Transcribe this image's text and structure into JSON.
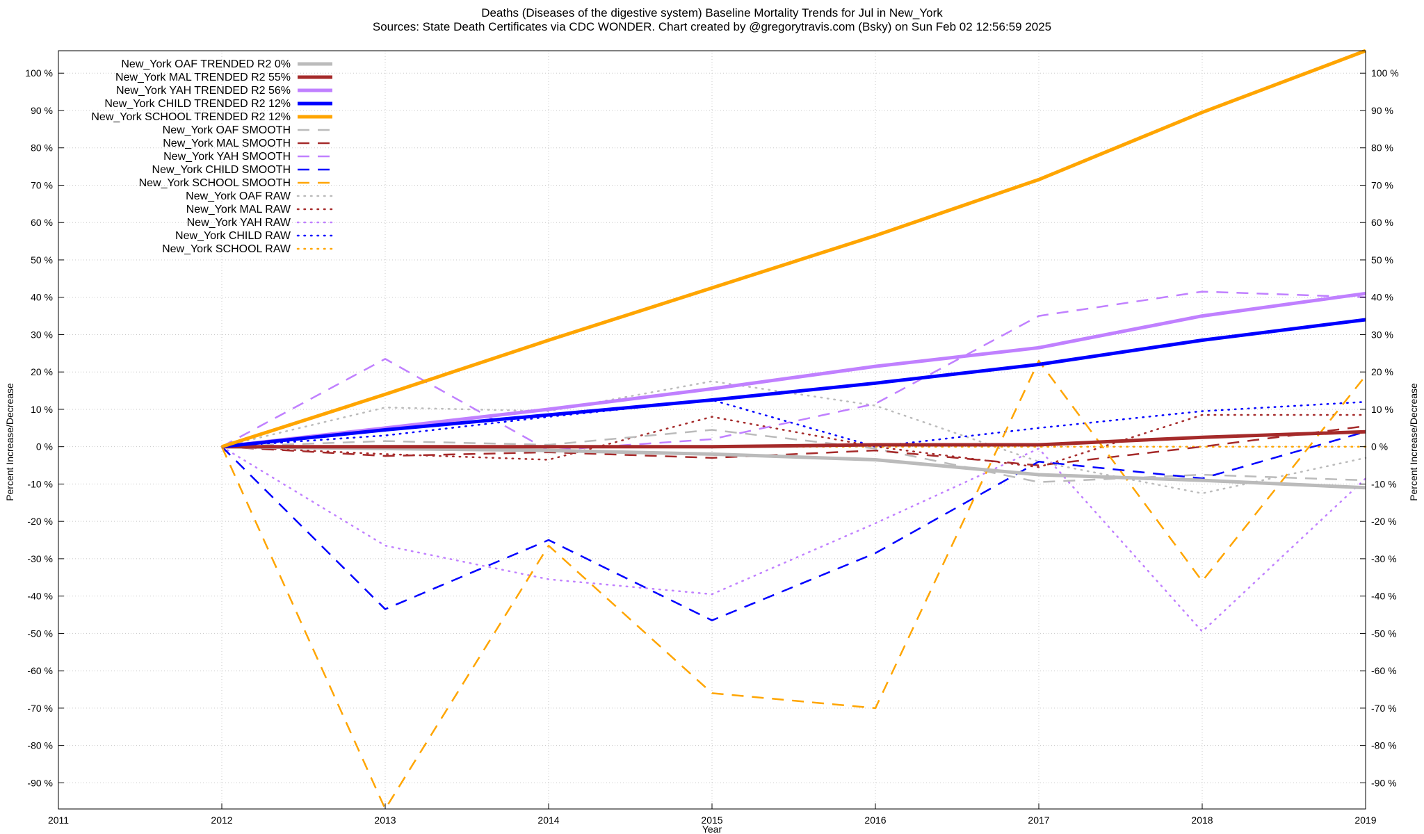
{
  "chart_data": {
    "type": "line",
    "title": "Deaths (Diseases of the digestive system)  Baseline Mortality Trends for Jul in New_York",
    "subtitle": "Sources: State Death Certificates via CDC WONDER.               Chart created by @gregorytravis.com (Bsky) on Sun Feb 02 12:56:59 2025",
    "xlabel": "Year",
    "ylabel_left": "Percent Increase/Decrease",
    "ylabel_right": "Percent Increase/Decrease",
    "xlim": [
      2011,
      2019
    ],
    "ylim": [
      -97,
      106
    ],
    "x_ticks": [
      2011,
      2012,
      2013,
      2014,
      2015,
      2016,
      2017,
      2018,
      2019
    ],
    "x_tick_labels": [
      "2011",
      "2012",
      "2013",
      "2014",
      "2015",
      "2016",
      "2017",
      "2018",
      "2019"
    ],
    "y_ticks": [
      -90,
      -80,
      -70,
      -60,
      -50,
      -40,
      -30,
      -20,
      -10,
      0,
      10,
      20,
      30,
      40,
      50,
      60,
      70,
      80,
      90,
      100
    ],
    "y_tick_labels": [
      "-90 %",
      "-80 %",
      "-70 %",
      "-60 %",
      "-50 %",
      "-40 %",
      "-30 %",
      "-20 %",
      "-10 %",
      "0 %",
      "10 %",
      "20 %",
      "30 %",
      "40 %",
      "50 %",
      "60 %",
      "70 %",
      "80 %",
      "90 %",
      "100 %"
    ],
    "grid": true,
    "legend_position": "top-left",
    "x": [
      2012,
      2013,
      2014,
      2015,
      2016,
      2017,
      2018,
      2019
    ],
    "series": [
      {
        "name": "New_York OAF TRENDED R2   0%",
        "color": "#bbbbbb",
        "style": "trend",
        "values": [
          0,
          -0.5,
          -1,
          -2,
          -3.5,
          -7.5,
          -9,
          -11
        ]
      },
      {
        "name": "New_York MAL TRENDED R2  55%",
        "color": "#a52a2a",
        "style": "trend",
        "values": [
          0,
          0,
          0,
          0,
          0.5,
          0.5,
          2.5,
          4
        ]
      },
      {
        "name": "New_York YAH TRENDED R2  56%",
        "color": "#c080ff",
        "style": "trend",
        "values": [
          0,
          5,
          10,
          15.5,
          21.5,
          26.5,
          35,
          41
        ]
      },
      {
        "name": "New_York CHILD TRENDED R2  12%",
        "color": "#0000ff",
        "style": "trend",
        "values": [
          0,
          4.5,
          8.5,
          12.5,
          17,
          22,
          28.5,
          34
        ]
      },
      {
        "name": "New_York SCHOOL TRENDED R2  12%",
        "color": "#ffa500",
        "style": "trend",
        "values": [
          0,
          14,
          28.5,
          42.5,
          56.5,
          71.5,
          89.5,
          106
        ]
      },
      {
        "name": "New_York OAF SMOOTH",
        "color": "#bbbbbb",
        "style": "smooth",
        "values": [
          0,
          1.5,
          0.5,
          4.5,
          -0.5,
          -9.5,
          -7.5,
          -9
        ]
      },
      {
        "name": "New_York MAL SMOOTH",
        "color": "#a52a2a",
        "style": "smooth",
        "values": [
          0,
          -2.5,
          -1.5,
          -3,
          -1,
          -5,
          0,
          5.5
        ]
      },
      {
        "name": "New_York YAH SMOOTH",
        "color": "#c080ff",
        "style": "smooth",
        "values": [
          0,
          23.5,
          -1,
          2,
          11.5,
          35,
          41.5,
          40
        ]
      },
      {
        "name": "New_York CHILD SMOOTH",
        "color": "#0000ff",
        "style": "smooth",
        "values": [
          0,
          -43.5,
          -25,
          -46.5,
          -28.5,
          -4,
          -8.5,
          4
        ]
      },
      {
        "name": "New_York SCHOOL SMOOTH",
        "color": "#ffa500",
        "style": "smooth",
        "values": [
          0,
          -97,
          -26.5,
          -66,
          -70,
          23,
          -36,
          19
        ]
      },
      {
        "name": "New_York OAF RAW",
        "color": "#bbbbbb",
        "style": "raw",
        "values": [
          0,
          10.5,
          9.5,
          17.5,
          11,
          -4,
          -12.5,
          -3
        ]
      },
      {
        "name": "New_York MAL RAW",
        "color": "#a52a2a",
        "style": "raw",
        "values": [
          0,
          -2,
          -3.5,
          8,
          0,
          -5.5,
          8.5,
          8.5
        ]
      },
      {
        "name": "New_York YAH RAW",
        "color": "#c080ff",
        "style": "raw",
        "values": [
          0,
          -26.5,
          -35.5,
          -39.5,
          -20.5,
          -0.5,
          -49.5,
          -8.5
        ]
      },
      {
        "name": "New_York CHILD RAW",
        "color": "#0000ff",
        "style": "raw",
        "values": [
          0,
          3,
          8,
          12.5,
          0,
          5,
          9.5,
          12
        ]
      },
      {
        "name": "New_York SCHOOL RAW",
        "color": "#ffa500",
        "style": "raw",
        "values": [
          0,
          0,
          0,
          0,
          0,
          0,
          0,
          0
        ]
      }
    ]
  }
}
